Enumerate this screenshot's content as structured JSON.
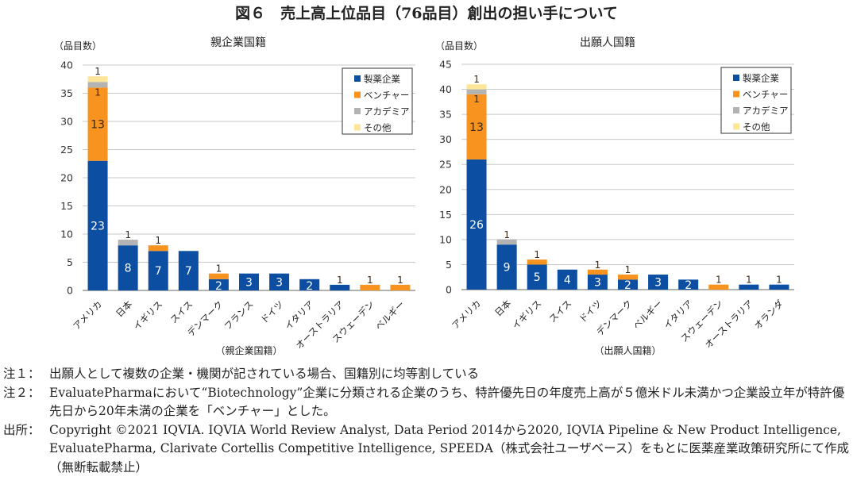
{
  "title": "図６　売上高上位品目（76品目）創出の担い手について",
  "legend": [
    {
      "name": "製薬企業",
      "color": "#0b4ea2"
    },
    {
      "name": "ベンチャー",
      "color": "#f7931e"
    },
    {
      "name": "アカデミア",
      "color": "#b3b3b3"
    },
    {
      "name": "その他",
      "color": "#fde59a"
    }
  ],
  "chart_data": [
    {
      "type": "bar",
      "stacked": true,
      "title": "親企業国籍",
      "ylabel": "（品目数）",
      "xlabel": "（親企業国籍）",
      "ylim": [
        0,
        40
      ],
      "yticks": [
        0,
        5,
        10,
        15,
        20,
        25,
        30,
        35,
        40
      ],
      "grid": true,
      "legend_position": "top-right",
      "categories": [
        "アメリカ",
        "日本",
        "イギリス",
        "スイス",
        "デンマーク",
        "フランス",
        "ドイツ",
        "イタリア",
        "オーストラリア",
        "スウェーデン",
        "ベルギー"
      ],
      "series": [
        {
          "name": "製薬企業",
          "values": [
            23,
            8,
            7,
            7,
            2,
            3,
            3,
            2,
            1,
            0,
            0
          ]
        },
        {
          "name": "ベンチャー",
          "values": [
            13,
            0,
            1,
            0,
            1,
            0,
            0,
            0,
            0,
            1,
            1
          ]
        },
        {
          "name": "アカデミア",
          "values": [
            1,
            1,
            0,
            0,
            0,
            0,
            0,
            0,
            0,
            0,
            0
          ]
        },
        {
          "name": "その他",
          "values": [
            1,
            0,
            0,
            0,
            0,
            0,
            0,
            0,
            0,
            0,
            0
          ]
        }
      ]
    },
    {
      "type": "bar",
      "stacked": true,
      "title": "出願人国籍",
      "ylabel": "（品目数）",
      "xlabel": "（出願人国籍）",
      "ylim": [
        0,
        45
      ],
      "yticks": [
        0,
        5,
        10,
        15,
        20,
        25,
        30,
        35,
        40,
        45
      ],
      "grid": true,
      "legend_position": "top-right",
      "categories": [
        "アメリカ",
        "日本",
        "イギリス",
        "スイス",
        "ドイツ",
        "デンマーク",
        "ベルギー",
        "イタリア",
        "スウェーデン",
        "オーストラリア",
        "オランダ"
      ],
      "series": [
        {
          "name": "製薬企業",
          "values": [
            26,
            9,
            5,
            4,
            3,
            2,
            3,
            2,
            0,
            1,
            1
          ]
        },
        {
          "name": "ベンチャー",
          "values": [
            13,
            0,
            1,
            0,
            1,
            1,
            0,
            0,
            1,
            0,
            0
          ]
        },
        {
          "name": "アカデミア",
          "values": [
            1,
            1,
            0,
            0,
            0,
            0,
            0,
            0,
            0,
            0,
            0
          ]
        },
        {
          "name": "その他",
          "values": [
            1,
            0,
            0,
            0,
            0,
            0,
            0,
            0,
            0,
            0,
            0
          ]
        }
      ]
    }
  ],
  "notes": [
    {
      "label": "注１：",
      "text": "出願人として複数の企業・機関が記されている場合、国籍別に均等割している"
    },
    {
      "label": "注２：",
      "text": "EvaluatePharmaにおいて“Biotechnology”企業に分類される企業のうち、特許優先日の年度売上高が５億米ドル未満かつ企業設立年が特許優先日から20年未満の企業を「ベンチャー」とした。"
    },
    {
      "label": "出所：",
      "text": "Copyright ©2021 IQVIA. IQVIA World Review Analyst, Data Period 2014から2020, IQVIA Pipeline & New Product Intelligence, EvaluatePharma, Clarivate Cortellis Competitive Intelligence, SPEEDA（株式会社ユーザベース）をもとに医薬産業政策研究所にて作成（無断転載禁止）"
    }
  ]
}
